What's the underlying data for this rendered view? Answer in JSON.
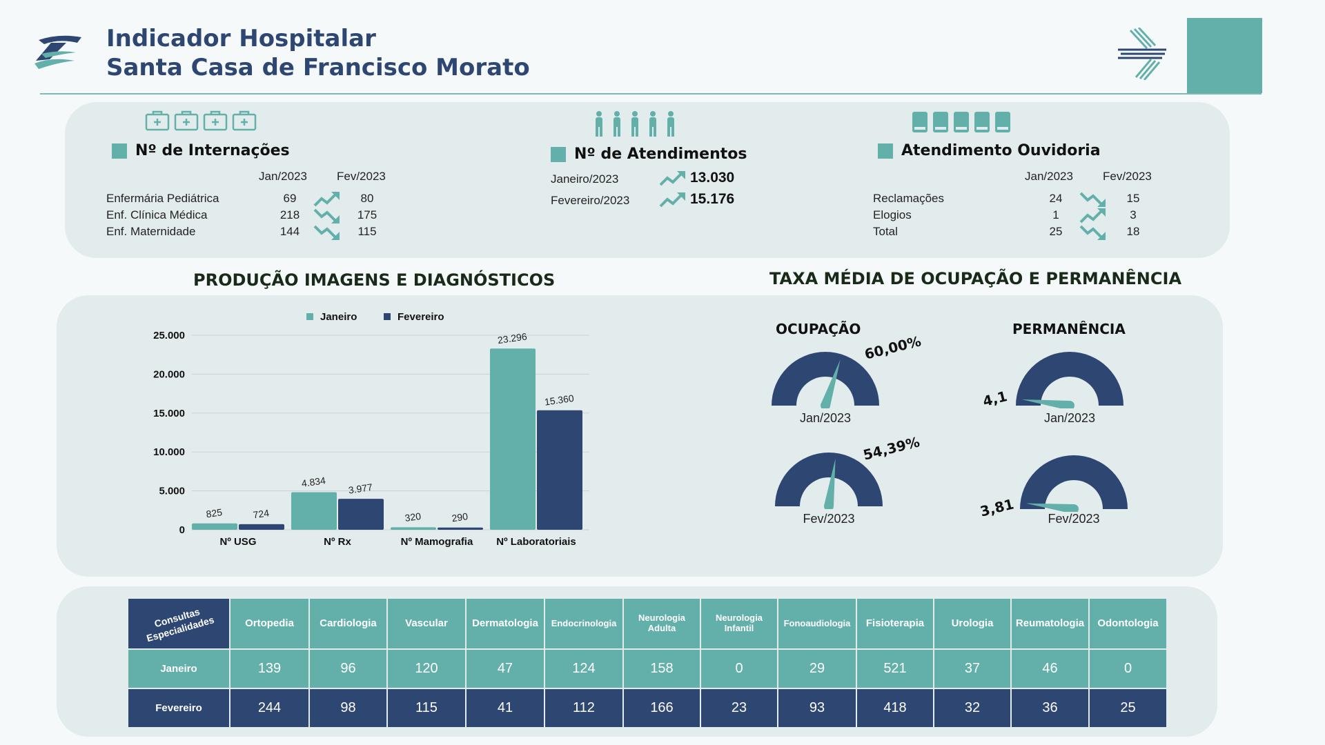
{
  "header": {
    "title_line1": "Indicador Hospitalar",
    "title_line2": "Santa Casa de Francisco Morato"
  },
  "colors": {
    "teal": "#63afaa",
    "navy": "#2e4672",
    "panel": "#e3eced"
  },
  "internacoes": {
    "title": "Nº de Internações",
    "col_jan": "Jan/2023",
    "col_fev": "Fev/2023",
    "rows": [
      {
        "label": "Enfermária Pediátrica",
        "jan": "69",
        "fev": "80",
        "trend": "up"
      },
      {
        "label": "Enf. Clínica Médica",
        "jan": "218",
        "fev": "175",
        "trend": "down"
      },
      {
        "label": "Enf. Maternidade",
        "jan": "144",
        "fev": "115",
        "trend": "down"
      }
    ]
  },
  "atendimentos": {
    "title": "Nº de Atendimentos",
    "rows": [
      {
        "label": "Janeiro/2023",
        "value": "13.030",
        "trend": "up"
      },
      {
        "label": "Fevereiro/2023",
        "value": "15.176",
        "trend": "up"
      }
    ]
  },
  "ouvidoria": {
    "title": "Atendimento Ouvidoria",
    "col_jan": "Jan/2023",
    "col_fev": "Fev/2023",
    "rows": [
      {
        "label": "Reclamações",
        "jan": "24",
        "fev": "15",
        "trend": "down"
      },
      {
        "label": "Elogios",
        "jan": "1",
        "fev": "3",
        "trend": "up"
      },
      {
        "label": "Total",
        "jan": "25",
        "fev": "18",
        "trend": "down"
      }
    ]
  },
  "producao_title": "PRODUÇÃO IMAGENS E DIAGNÓSTICOS",
  "taxa_title": "TAXA MÉDIA DE OCUPAÇÃO E PERMANÊNCIA",
  "chart_data": {
    "type": "bar",
    "categories": [
      "Nº USG",
      "Nº  Rx",
      "Nº Mamografia",
      "Nº Laboratoriais"
    ],
    "series": [
      {
        "name": "Janeiro",
        "values": [
          825,
          4834,
          320,
          23296
        ],
        "labels": [
          "825",
          "4.834",
          "320",
          "23.296"
        ],
        "color": "#63afaa"
      },
      {
        "name": "Fevereiro",
        "values": [
          724,
          3977,
          290,
          15360
        ],
        "labels": [
          "724",
          "3.977",
          "290",
          "15.360"
        ],
        "color": "#2e4672"
      }
    ],
    "y_ticks": [
      "0",
      "5.000",
      "10.000",
      "15.000",
      "20.000",
      "25.000"
    ],
    "ylim": [
      0,
      25000
    ],
    "grid": true,
    "legend": "top-center"
  },
  "gauges": {
    "ocupacao_title": "OCUPAÇÃO",
    "permanencia_title": "PERMANÊNCIA",
    "items": [
      {
        "key": "ocup_jan",
        "value": 60.0,
        "value_label": "60,00%",
        "caption": "Jan/2023",
        "max": 100
      },
      {
        "key": "ocup_fev",
        "value": 54.39,
        "value_label": "54,39%",
        "caption": "Fev/2023",
        "max": 100
      },
      {
        "key": "perm_jan",
        "value": 4.1,
        "value_label": "4,1",
        "caption": "Jan/2023",
        "max": 100
      },
      {
        "key": "perm_fev",
        "value": 3.81,
        "value_label": "3,81",
        "caption": "Fev/2023",
        "max": 100
      }
    ]
  },
  "consultas": {
    "corner_label": "Consultas Especialidades",
    "specialties": [
      "Ortopedia",
      "Cardiologia",
      "Vascular",
      "Dermatologia",
      "Endocrinologia",
      "Neurologia Adulta",
      "Neurologia Infantil",
      "Fonoaudiologia",
      "Fisioterapia",
      "Urologia",
      "Reumatologia",
      "Odontologia"
    ],
    "janeiro_label": "Janeiro",
    "fevereiro_label": "Fevereiro",
    "janeiro": [
      "139",
      "96",
      "120",
      "47",
      "124",
      "158",
      "0",
      "29",
      "521",
      "37",
      "46",
      "0"
    ],
    "fevereiro": [
      "244",
      "98",
      "115",
      "41",
      "112",
      "166",
      "23",
      "93",
      "418",
      "32",
      "36",
      "25"
    ]
  }
}
